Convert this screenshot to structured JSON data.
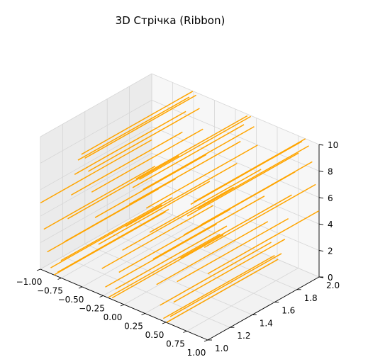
{
  "chart_data": {
    "type": "line",
    "projection": "3d",
    "title": "3D Стрічка (Ribbon)",
    "xlabel": "",
    "ylabel": "",
    "zlabel": "",
    "xlim": [
      -1.0,
      1.0
    ],
    "ylim": [
      1.0,
      2.0
    ],
    "zlim": [
      0,
      10
    ],
    "grid": true,
    "legend": "none",
    "x_ticks": [
      "−1.00",
      "−0.75",
      "−0.50",
      "−0.25",
      "0.00",
      "0.25",
      "0.50",
      "0.75",
      "1.00"
    ],
    "y_ticks": [
      "1.0",
      "1.2",
      "1.4",
      "1.6",
      "1.8",
      "2.0"
    ],
    "z_ticks": [
      "0",
      "2",
      "4",
      "6",
      "8",
      "10"
    ],
    "series": [
      {
        "color": "#FFA500",
        "description": "ribbon of straight segments spanning y=1 to y=2 at each x, following z = 5 + 5·sin(3πx)",
        "x_range": [
          -1.0,
          1.0
        ],
        "segments": 50,
        "z_function": "5 + 5*sin(3*pi*x)"
      }
    ]
  }
}
